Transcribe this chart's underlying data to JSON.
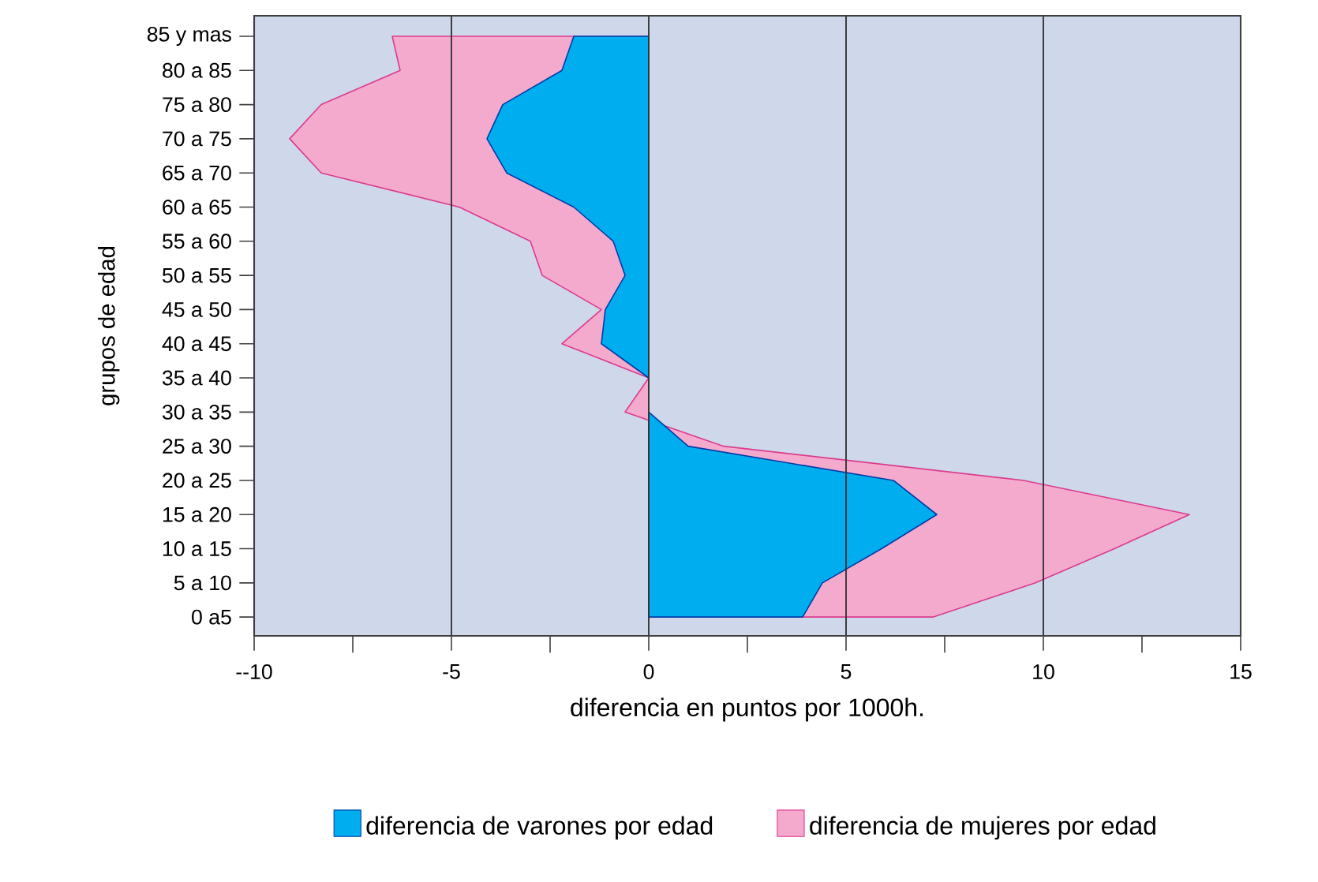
{
  "chart_data": {
    "type": "area",
    "orientation": "horizontal",
    "xlabel": "diferencia en puntos por 1000h.",
    "ylabel": "grupos de edad",
    "categories": [
      "85 y mas",
      "80 a 85",
      "75 a 80",
      "70 a 75",
      "65 a 70",
      "60 a 65",
      "55 a 60",
      "50 a 55",
      "45 a 50",
      "40 a 45",
      "35 a 40",
      "30 a 35",
      "25 a 30",
      "20 a 25",
      "15 a 20",
      "10 a 15",
      "5 a 10",
      "0 a5"
    ],
    "series": [
      {
        "name": "diferencia de varones por edad",
        "color": "#00aeef",
        "values": [
          -1.9,
          -2.2,
          -3.7,
          -4.1,
          -3.6,
          -1.9,
          -0.9,
          -0.6,
          -1.1,
          -1.2,
          0,
          0,
          1.0,
          6.2,
          7.3,
          5.9,
          4.4,
          3.9
        ]
      },
      {
        "name": "diferencia de mujeres por edad",
        "color": "#f4aacd",
        "values": [
          -6.5,
          -6.3,
          -8.3,
          -9.1,
          -8.3,
          -4.8,
          -3.0,
          -2.7,
          -1.2,
          -2.2,
          0,
          -0.6,
          1.9,
          9.5,
          13.7,
          11.8,
          9.8,
          7.2
        ]
      }
    ],
    "xlim": [
      -10,
      15
    ],
    "xticks": [
      {
        "value": -10,
        "label": "--10"
      },
      {
        "value": -7.5,
        "label": null
      },
      -5,
      {
        "value": -2.5,
        "label": null
      },
      0,
      {
        "value": 2.5,
        "label": null
      },
      5,
      {
        "value": 7.5,
        "label": null
      },
      10,
      {
        "value": 12.5,
        "label": null
      },
      15
    ],
    "grid": "x",
    "legend": "bottom"
  }
}
